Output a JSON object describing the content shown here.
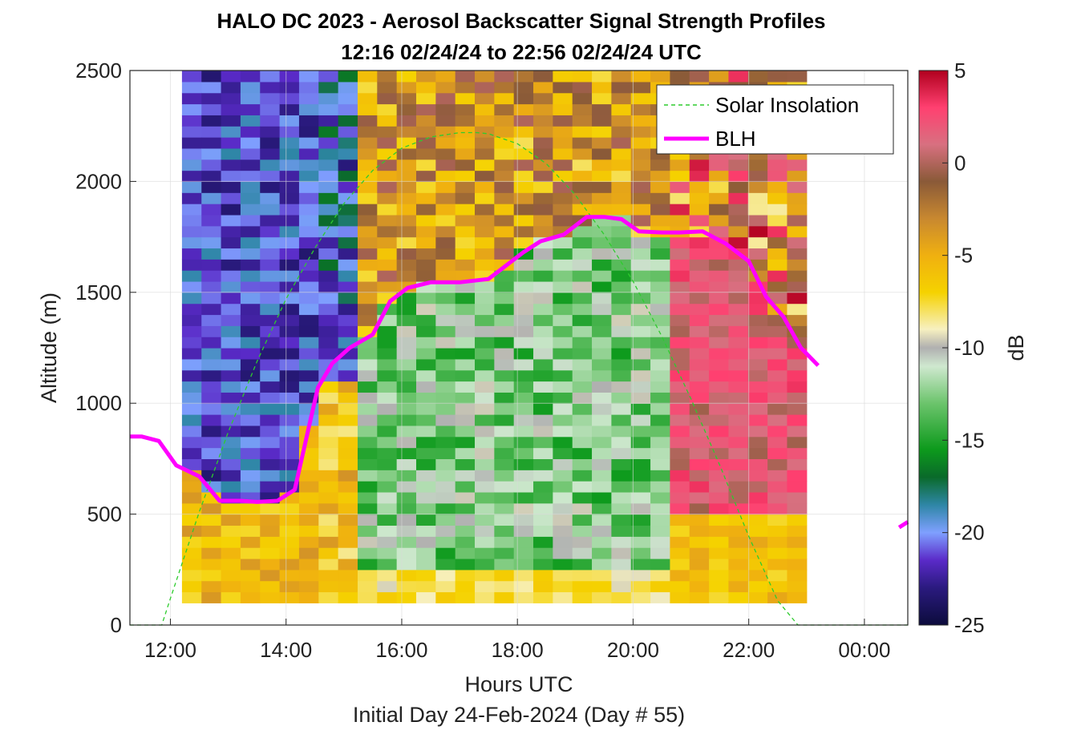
{
  "chart_data": {
    "type": "heatmap",
    "title": "HALO DC 2023 - Aerosol Backscatter Signal Strength Profiles",
    "subtitle": "12:16 02/24/24 to 22:56 02/24/24  UTC",
    "xlabel": "Hours UTC",
    "xlabel2": "Initial Day 24-Feb-2024 (Day # 55)",
    "ylabel": "Altitude (m)",
    "xlim": [
      11.3,
      24.75
    ],
    "ylim": [
      0,
      2500
    ],
    "xticks": [
      12,
      14,
      16,
      18,
      20,
      22,
      24
    ],
    "xtick_labels": [
      "12:00",
      "14:00",
      "16:00",
      "18:00",
      "20:00",
      "22:00",
      "00:00"
    ],
    "yticks": [
      0,
      500,
      1000,
      1500,
      2000,
      2500
    ],
    "ytick_labels": [
      "0",
      "500",
      "1000",
      "1500",
      "2000",
      "2500"
    ],
    "grid": true,
    "colorbar": {
      "label": "dB",
      "range": [
        -25,
        5
      ],
      "ticks": [
        5,
        0,
        -5,
        -10,
        -15,
        -20,
        -25
      ],
      "tick_labels": [
        "5",
        "0",
        "-5",
        "-10",
        "-15",
        "-20",
        "-25"
      ],
      "stops": [
        {
          "v": -25,
          "c": "#0c0c3c"
        },
        {
          "v": -23,
          "c": "#2a1a7e"
        },
        {
          "v": -21.5,
          "c": "#5a2ac8"
        },
        {
          "v": -20,
          "c": "#7fa0ff"
        },
        {
          "v": -18.5,
          "c": "#2e86a6"
        },
        {
          "v": -17,
          "c": "#0a6a2a"
        },
        {
          "v": -15.5,
          "c": "#0d9a1c"
        },
        {
          "v": -13,
          "c": "#6cc46c"
        },
        {
          "v": -11,
          "c": "#cfe8cf"
        },
        {
          "v": -10,
          "c": "#b0b0b0"
        },
        {
          "v": -9,
          "c": "#f7f0c0"
        },
        {
          "v": -7,
          "c": "#f5d200"
        },
        {
          "v": -5,
          "c": "#f0b010"
        },
        {
          "v": -3,
          "c": "#c88830"
        },
        {
          "v": -1,
          "c": "#8a5a38"
        },
        {
          "v": 1,
          "c": "#d87080"
        },
        {
          "v": 3,
          "c": "#ff4070"
        },
        {
          "v": 5,
          "c": "#b0001e"
        }
      ]
    },
    "heatmap": {
      "x_start": 12.2,
      "x_end": 23.0,
      "y_start": 100,
      "y_end": 2500,
      "time_bins": 32,
      "alt_bins": 48,
      "note_values": "dB signal strength estimated per column/row"
    },
    "series": [
      {
        "name": "Solar Insolation",
        "color": "#2ecc2e",
        "style": "dashed",
        "x": [
          11.3,
          11.85,
          12.0,
          12.5,
          13.0,
          13.5,
          14.0,
          14.5,
          15.0,
          15.5,
          16.0,
          16.5,
          17.0,
          17.3,
          17.5,
          18.0,
          18.5,
          19.0,
          19.5,
          20.0,
          20.5,
          21.0,
          21.5,
          22.0,
          22.5,
          22.85,
          23.0,
          24.75
        ],
        "y": [
          0,
          0,
          120,
          510,
          870,
          1190,
          1470,
          1700,
          1900,
          2050,
          2150,
          2200,
          2220,
          2220,
          2215,
          2170,
          2080,
          1940,
          1760,
          1550,
          1300,
          1020,
          720,
          400,
          110,
          0,
          0,
          0
        ]
      },
      {
        "name": "BLH",
        "color": "#ff00ff",
        "style": "solid",
        "x": [
          11.3,
          11.5,
          11.8,
          12.1,
          12.5,
          12.85,
          13.2,
          13.5,
          13.85,
          14.15,
          14.4,
          14.55,
          14.8,
          15.1,
          15.5,
          15.8,
          16.1,
          16.5,
          17.0,
          17.5,
          17.8,
          18.1,
          18.4,
          18.8,
          19.2,
          19.5,
          19.8,
          20.1,
          20.5,
          20.8,
          21.2,
          21.6,
          22.0,
          22.3,
          22.6,
          22.9,
          23.2
        ],
        "y": [
          850,
          850,
          830,
          720,
          670,
          560,
          560,
          555,
          560,
          610,
          900,
          1070,
          1180,
          1250,
          1310,
          1460,
          1520,
          1545,
          1545,
          1560,
          1620,
          1680,
          1730,
          1760,
          1840,
          1840,
          1830,
          1775,
          1770,
          1770,
          1775,
          1720,
          1640,
          1480,
          1390,
          1250,
          1170
        ]
      },
      {
        "name": "BLH",
        "color": "#ff00ff",
        "style": "solid",
        "x": [
          24.6,
          24.75
        ],
        "y": [
          440,
          465
        ]
      }
    ],
    "legend": {
      "placement": "top-right",
      "entries": [
        "Solar Insolation",
        "BLH"
      ]
    }
  }
}
